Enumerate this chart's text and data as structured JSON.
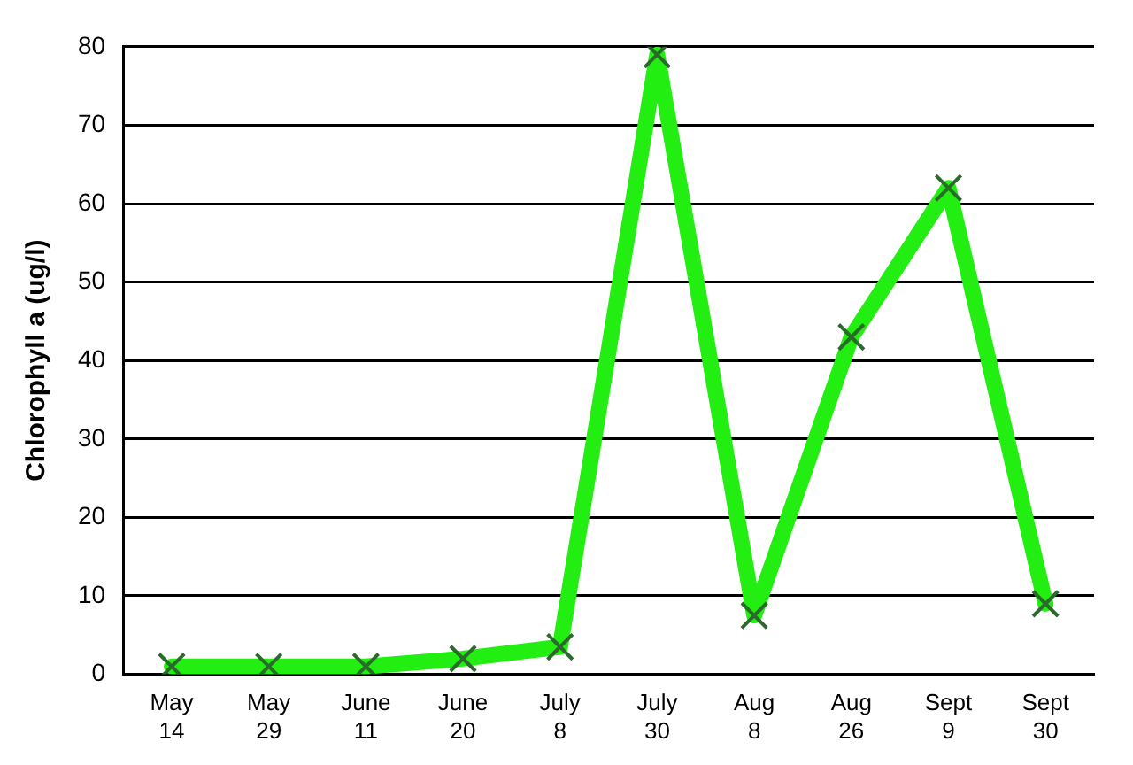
{
  "chart_data": {
    "type": "line",
    "ylabel": "Chlorophyll a (ug/l)",
    "categories": [
      "May 14",
      "May 29",
      "June 11",
      "June 20",
      "July 8",
      "July 30",
      "Aug 8",
      "Aug 26",
      "Sept 9",
      "Sept 30"
    ],
    "series": [
      {
        "color": "#22ee11",
        "values": [
          1,
          1,
          1,
          2,
          3.5,
          79,
          7.5,
          43,
          62,
          9
        ]
      }
    ],
    "ylim": [
      0,
      80
    ],
    "yticks": [
      0,
      10,
      20,
      30,
      40,
      50,
      60,
      70,
      80
    ],
    "grid": "y",
    "marker": "cross",
    "line_style": "solid"
  }
}
